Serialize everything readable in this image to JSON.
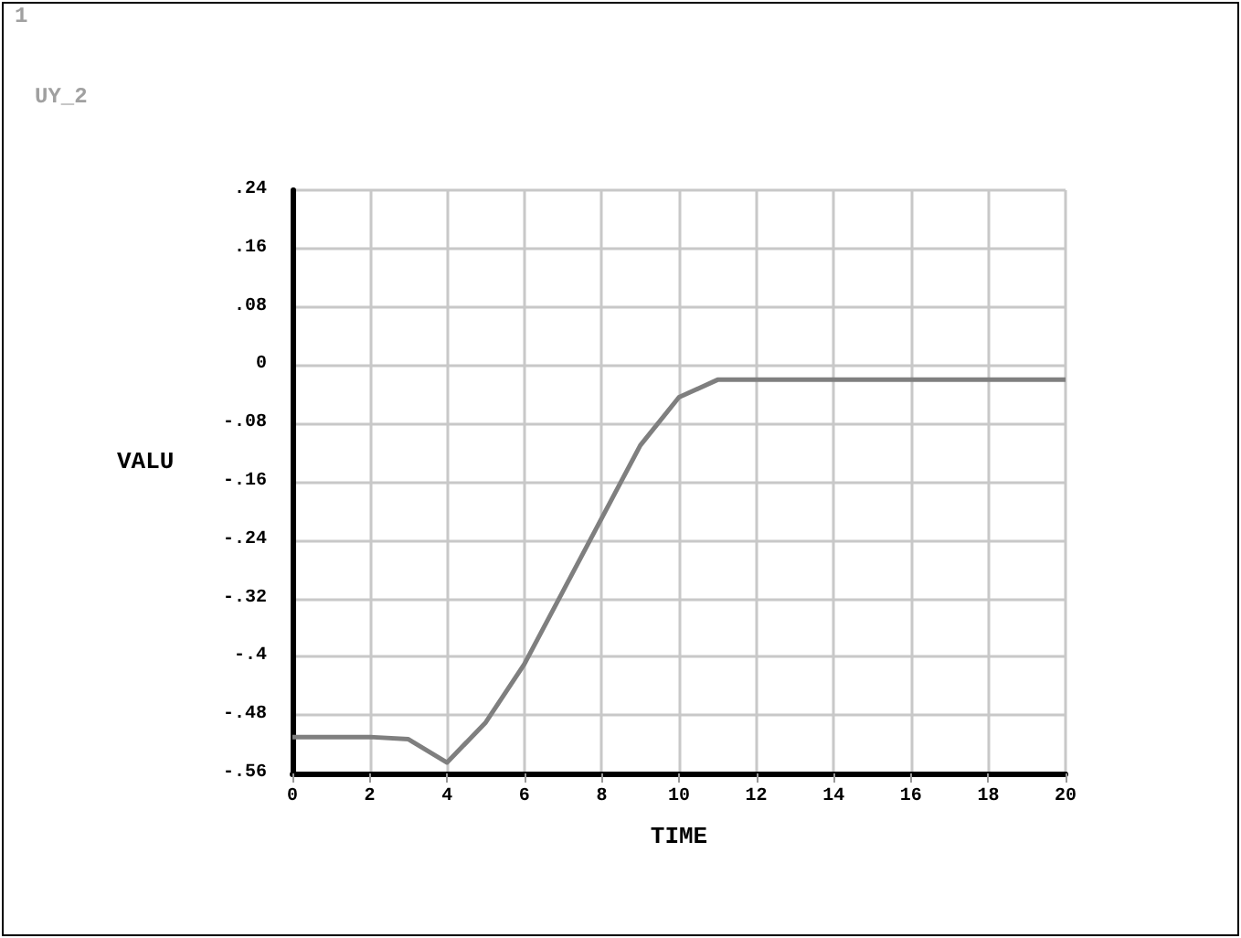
{
  "chart_data": {
    "type": "line",
    "xlabel": "TIME",
    "ylabel": "VALU",
    "annotations": [
      "1",
      "UY_2"
    ],
    "series": [
      {
        "color": "#7f7f7f",
        "x": [
          0,
          2,
          3,
          4,
          5,
          6,
          7,
          8,
          9,
          10,
          11,
          12,
          14,
          16,
          18,
          20
        ],
        "values": [
          -0.51,
          -0.51,
          -0.513,
          -0.545,
          -0.49,
          -0.41,
          -0.31,
          -0.21,
          -0.11,
          -0.044,
          -0.02,
          -0.02,
          -0.02,
          -0.02,
          -0.02,
          -0.02
        ]
      }
    ],
    "xlim": [
      0,
      20
    ],
    "xticks": [
      0,
      2,
      4,
      6,
      8,
      10,
      12,
      14,
      16,
      18,
      20
    ],
    "ylim": [
      -0.56,
      0.24
    ],
    "yticks": [
      {
        "value": 0.24,
        "label": ".24"
      },
      {
        "value": 0.16,
        "label": ".16"
      },
      {
        "value": 0.08,
        "label": ".08"
      },
      {
        "value": 0,
        "label": "0"
      },
      {
        "value": -0.08,
        "label": "-.08"
      },
      {
        "value": -0.16,
        "label": "-.16"
      },
      {
        "value": -0.24,
        "label": "-.24"
      },
      {
        "value": -0.32,
        "label": "-.32"
      },
      {
        "value": -0.4,
        "label": "-.4"
      },
      {
        "value": -0.48,
        "label": "-.48"
      },
      {
        "value": -0.56,
        "label": "-.56"
      }
    ],
    "grid": true,
    "marker": "none",
    "line_style": "solid"
  }
}
